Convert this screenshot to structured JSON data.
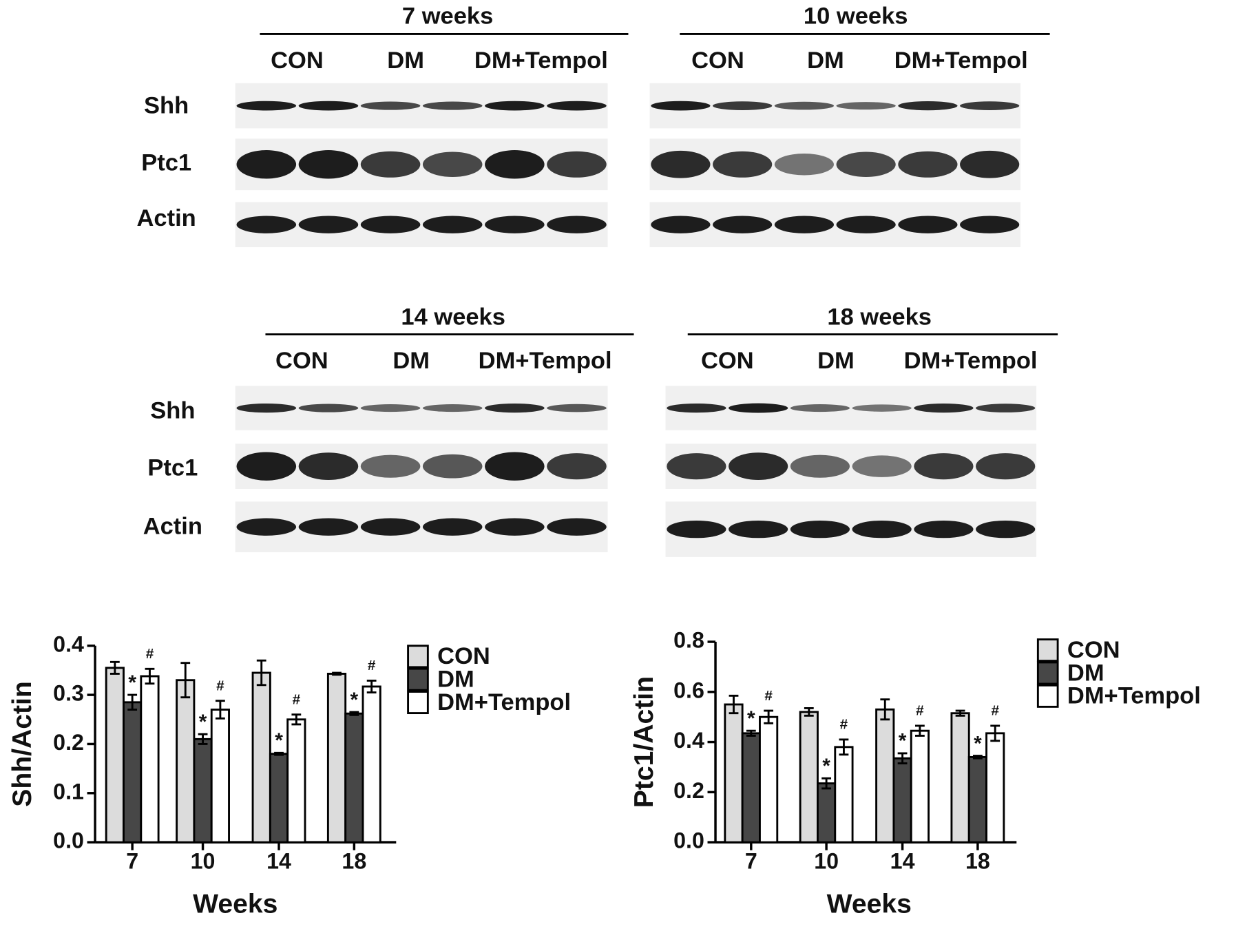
{
  "blots": [
    {
      "title": "7 weeks",
      "groups": [
        "CON",
        "DM",
        "DM+Tempol"
      ],
      "rows": [
        "Shh",
        "Ptc1",
        "Actin"
      ]
    },
    {
      "title": "10 weeks",
      "groups": [
        "CON",
        "DM",
        "DM+Tempol"
      ]
    },
    {
      "title": "14 weeks",
      "groups": [
        "CON",
        "DM",
        "DM+Tempol"
      ],
      "rows": [
        "Shh",
        "Ptc1",
        "Actin"
      ]
    },
    {
      "title": "18 weeks",
      "groups": [
        "CON",
        "DM",
        "DM+Tempol"
      ]
    }
  ],
  "chart_data": [
    {
      "type": "bar",
      "ylabel": "Shh/Actin",
      "xlabel": "Weeks",
      "categories": [
        "7",
        "10",
        "14",
        "18"
      ],
      "ylim": [
        0,
        0.4
      ],
      "yticks": [
        {
          "value": 0,
          "label": "0.0"
        },
        {
          "value": 0.1,
          "label": "0.1"
        },
        {
          "value": 0.2,
          "label": "0.2"
        },
        {
          "value": 0.3,
          "label": "0.3"
        },
        {
          "value": 0.4,
          "label": "0.4"
        }
      ],
      "legend": "right",
      "series": [
        {
          "name": "CON",
          "color": "#dcdcdc",
          "values": [
            0.355,
            0.33,
            0.345,
            0.343
          ],
          "errors": [
            0.012,
            0.035,
            0.025,
            0.002
          ]
        },
        {
          "name": "DM",
          "color": "#474747",
          "values": [
            0.285,
            0.21,
            0.18,
            0.262
          ],
          "errors": [
            0.015,
            0.01,
            0.002,
            0.003
          ],
          "marks": [
            "*",
            "*",
            "*",
            "*"
          ]
        },
        {
          "name": "DM+Tempol",
          "color": "#ffffff",
          "values": [
            0.338,
            0.27,
            0.25,
            0.317
          ],
          "errors": [
            0.015,
            0.018,
            0.01,
            0.012
          ],
          "marks": [
            "#",
            "#",
            "#",
            "#"
          ]
        }
      ]
    },
    {
      "type": "bar",
      "ylabel": "Ptc1/Actin",
      "xlabel": "Weeks",
      "categories": [
        "7",
        "10",
        "14",
        "18"
      ],
      "ylim": [
        0,
        0.8
      ],
      "yticks": [
        {
          "value": 0,
          "label": "0.0"
        },
        {
          "value": 0.2,
          "label": "0.2"
        },
        {
          "value": 0.4,
          "label": "0.4"
        },
        {
          "value": 0.6,
          "label": "0.6"
        },
        {
          "value": 0.8,
          "label": "0.8"
        }
      ],
      "legend": "right",
      "series": [
        {
          "name": "CON",
          "color": "#dcdcdc",
          "values": [
            0.55,
            0.52,
            0.53,
            0.515
          ],
          "errors": [
            0.035,
            0.015,
            0.04,
            0.01
          ]
        },
        {
          "name": "DM",
          "color": "#474747",
          "values": [
            0.435,
            0.235,
            0.335,
            0.34
          ],
          "errors": [
            0.01,
            0.02,
            0.02,
            0.005
          ],
          "marks": [
            "*",
            "*",
            "*",
            "*"
          ]
        },
        {
          "name": "DM+Tempol",
          "color": "#ffffff",
          "values": [
            0.5,
            0.38,
            0.445,
            0.435
          ],
          "errors": [
            0.025,
            0.03,
            0.02,
            0.03
          ],
          "marks": [
            "#",
            "#",
            "#",
            "#"
          ]
        }
      ]
    }
  ]
}
